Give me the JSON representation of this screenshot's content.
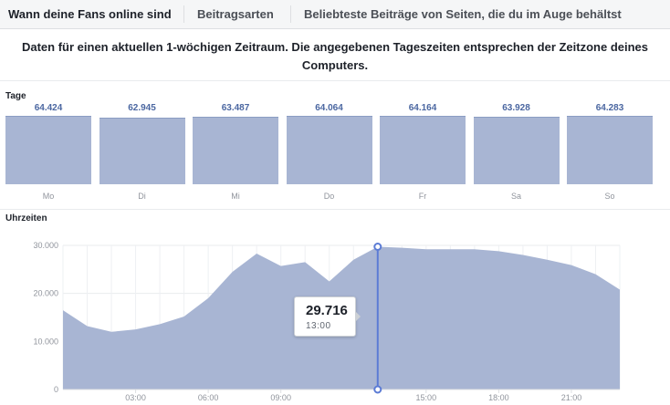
{
  "tabs": [
    {
      "label": "Wann deine Fans online sind",
      "active": true
    },
    {
      "label": "Beitragsarten",
      "active": false
    },
    {
      "label": "Beliebteste Beiträge von Seiten, die du im Auge behältst",
      "active": false
    }
  ],
  "notice": "Daten für einen aktuellen 1-wöchigen Zeitraum. Die angegebenen Tageszeiten entsprechen der Zeitzone deines Computers.",
  "days_section": {
    "label": "Tage",
    "days": [
      {
        "label": "Mo",
        "value_text": "64.424",
        "value": 64424
      },
      {
        "label": "Di",
        "value_text": "62.945",
        "value": 62945
      },
      {
        "label": "Mi",
        "value_text": "63.487",
        "value": 63487
      },
      {
        "label": "Do",
        "value_text": "64.064",
        "value": 64064
      },
      {
        "label": "Fr",
        "value_text": "64.164",
        "value": 64164
      },
      {
        "label": "Sa",
        "value_text": "63.928",
        "value": 63928
      },
      {
        "label": "So",
        "value_text": "64.283",
        "value": 64283
      }
    ]
  },
  "hours_section": {
    "label": "Uhrzeiten",
    "tooltip": {
      "value": "29.716",
      "time": "13:00"
    }
  },
  "colors": {
    "area_fill": "#a8b5d3",
    "area_stroke": "#8b9dc3",
    "hover_line": "#5b7bd5",
    "value_text": "#4b67a1"
  },
  "chart_data": {
    "type": "area",
    "x": [
      0,
      1,
      2,
      3,
      4,
      5,
      6,
      7,
      8,
      9,
      10,
      11,
      12,
      13,
      14,
      15,
      16,
      17,
      18,
      19,
      20,
      21,
      22,
      23
    ],
    "values": [
      16500,
      13200,
      12000,
      12500,
      13600,
      15200,
      19000,
      24500,
      28300,
      25700,
      26500,
      22500,
      27000,
      29716,
      29500,
      29200,
      29200,
      29200,
      28800,
      28000,
      27000,
      25900,
      24000,
      20800
    ],
    "ylim": [
      0,
      30000
    ],
    "y_ticks": [
      "0",
      "10.000",
      "20.000",
      "30.000"
    ],
    "x_ticks": [
      "03:00",
      "06:00",
      "09:00",
      "15:00",
      "18:00",
      "21:00"
    ],
    "x_tick_hours": [
      3,
      6,
      9,
      15,
      18,
      21
    ],
    "highlight_hour": 13
  }
}
